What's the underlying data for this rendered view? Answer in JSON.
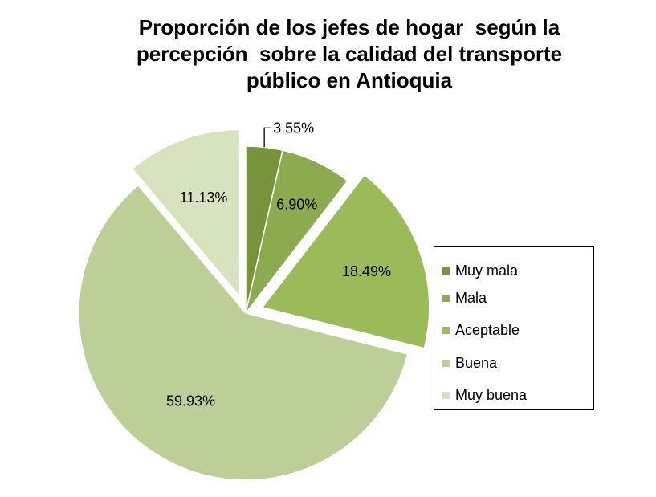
{
  "chart_data": {
    "type": "pie",
    "title_lines": [
      "Proporción de los jefes de hogar  según la",
      "percepción  sobre la calidad del transporte",
      "público en Antioquia"
    ],
    "categories": [
      "Muy mala",
      "Mala",
      "Aceptable",
      "Buena",
      "Muy buena"
    ],
    "values": [
      3.55,
      6.9,
      18.49,
      59.93,
      11.13
    ],
    "value_labels": [
      "3.55%",
      "6.90%",
      "18.49%",
      "59.93%",
      "11.13%"
    ],
    "colors": [
      "#77933c",
      "#8caa4e",
      "#9bbb59",
      "#bbcf97",
      "#d7e3bf"
    ],
    "exploded": [
      false,
      false,
      true,
      false,
      true
    ],
    "legend_position": "right"
  }
}
